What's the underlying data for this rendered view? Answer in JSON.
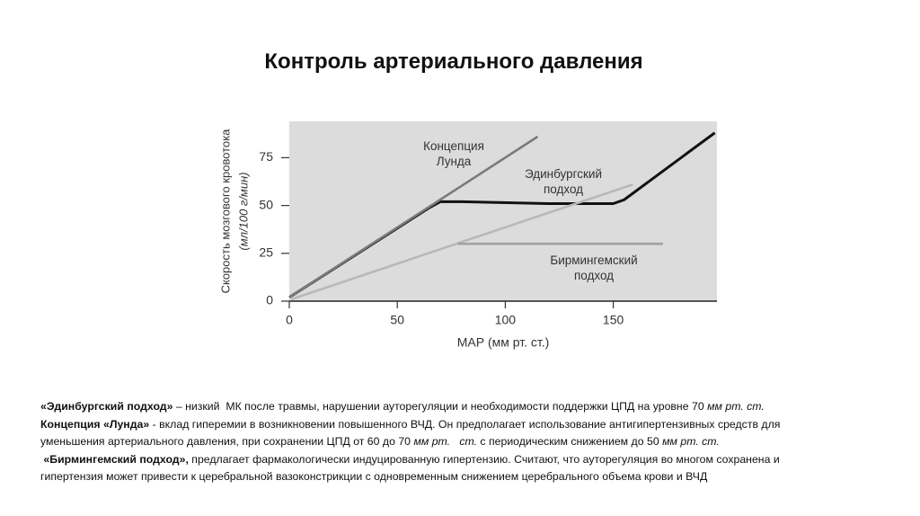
{
  "slide_title": "Контроль артериального давления",
  "chart_data": {
    "type": "line",
    "y_label": [
      "Скорость мозгового кровотока",
      "(мл/100 г/мин)"
    ],
    "x_label": "МАР (мм рт. ст.)",
    "xlim": [
      0,
      198
    ],
    "ylim": [
      0,
      94
    ],
    "xticks": [
      0,
      50,
      100,
      150
    ],
    "yticks": [
      0,
      25,
      50,
      75
    ],
    "series": [
      {
        "color": "#111111",
        "x": [
          0,
          65,
          70,
          80,
          120,
          150,
          155,
          197
        ],
        "values": [
          2,
          49,
          52,
          52,
          51,
          51,
          53,
          88
        ]
      },
      {
        "name": "Концепция\nЛунда",
        "color": "#7a7a7a",
        "x": [
          0,
          115
        ],
        "values": [
          2,
          86
        ]
      },
      {
        "name": "Эдинбургский\nподход",
        "color": "#b8b8b8",
        "x": [
          1,
          159
        ],
        "values": [
          1,
          61
        ]
      },
      {
        "name": "Бирмингемский\nподход",
        "color": "#a2a2a2",
        "x": [
          78,
          173
        ],
        "values": [
          30,
          30
        ]
      }
    ]
  },
  "notes": [
    [
      {
        "text": "«Эдинбургский подход»",
        "bold": true
      },
      {
        "text": " – низкий  МК после травмы, нарушении ауторегуляции и необходимости поддержки ЦПД на уровне 70 "
      },
      {
        "text": "мм рт. ст.",
        "italic": true
      }
    ],
    [
      {
        "text": "Концепция «Лунда»",
        "bold": true
      },
      {
        "text": " - вклад гиперемии в возникновении повышенного ВЧД. Он предполагает использование антигипертензивных средств для"
      }
    ],
    [
      {
        "text": "уменьшения артериального давления, при сохранении ЦПД от 60 до 70 "
      },
      {
        "text": "мм рт.   ст.",
        "italic": true
      },
      {
        "text": " с периодическим снижением до 50 "
      },
      {
        "text": "мм рт. ст.",
        "italic": true
      }
    ],
    [
      {
        "text": " «Бирмингемский подход»,",
        "bold": true
      },
      {
        "text": " предлагает фармакологически индуцированную гипертензию. Считают, что ауторегуляция во многом сохранена и"
      }
    ],
    [
      {
        "text": "гипертензия может привести к церебральной вазоконстрикции с одновременным снижением церебрального объема крови и ВЧД"
      }
    ]
  ]
}
